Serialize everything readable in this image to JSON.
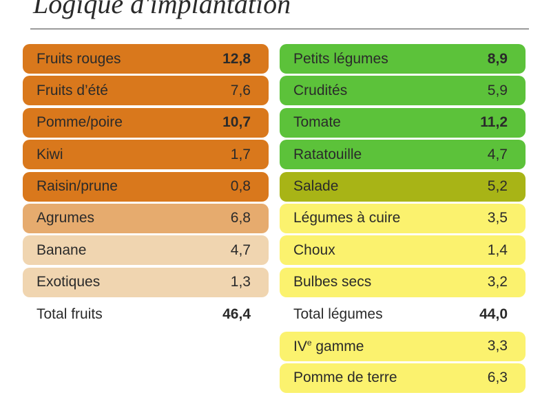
{
  "title": "Logique d'implantation",
  "fruits": {
    "items": [
      {
        "label": "Fruits rouges",
        "value": "12,8",
        "bold": true,
        "color": "#d9781c"
      },
      {
        "label": "Fruits d’été",
        "value": "7,6",
        "bold": false,
        "color": "#d9781c"
      },
      {
        "label": "Pomme/poire",
        "value": "10,7",
        "bold": true,
        "color": "#d9781c"
      },
      {
        "label": "Kiwi",
        "value": "1,7",
        "bold": false,
        "color": "#d9781c"
      },
      {
        "label": "Raisin/prune",
        "value": "0,8",
        "bold": false,
        "color": "#d9781c"
      },
      {
        "label": "Agrumes",
        "value": "6,8",
        "bold": false,
        "color": "#e6ab6e"
      },
      {
        "label": "Banane",
        "value": "4,7",
        "bold": false,
        "color": "#f0d5b0"
      },
      {
        "label": "Exotiques",
        "value": "1,3",
        "bold": false,
        "color": "#f0d5b0"
      }
    ],
    "total": {
      "label": "Total fruits",
      "value": "46,4"
    }
  },
  "legumes": {
    "items": [
      {
        "label": "Petits légumes",
        "value": "8,9",
        "bold": true,
        "color": "#5cc23a"
      },
      {
        "label": "Crudités",
        "value": "5,9",
        "bold": false,
        "color": "#5cc23a"
      },
      {
        "label": "Tomate",
        "value": "11,2",
        "bold": true,
        "color": "#5cc23a"
      },
      {
        "label": "Ratatouille",
        "value": "4,7",
        "bold": false,
        "color": "#5cc23a"
      },
      {
        "label": "Salade",
        "value": "5,2",
        "bold": false,
        "color": "#a8b416"
      },
      {
        "label": "Légumes à cuire",
        "value": "3,5",
        "bold": false,
        "color": "#fbf26e"
      },
      {
        "label": "Choux",
        "value": "1,4",
        "bold": false,
        "color": "#fbf26e"
      },
      {
        "label": "Bulbes secs",
        "value": "3,2",
        "bold": false,
        "color": "#fbf26e"
      }
    ],
    "total": {
      "label": "Total légumes",
      "value": "44,0"
    },
    "extra": [
      {
        "label_main": "IV",
        "label_sup": "e",
        "label_rest": " gamme",
        "value": "3,3",
        "color": "#fbf26e"
      },
      {
        "label_main": "Pomme de terre",
        "label_sup": "",
        "label_rest": "",
        "value": "6,3",
        "color": "#fbf26e"
      }
    ]
  }
}
